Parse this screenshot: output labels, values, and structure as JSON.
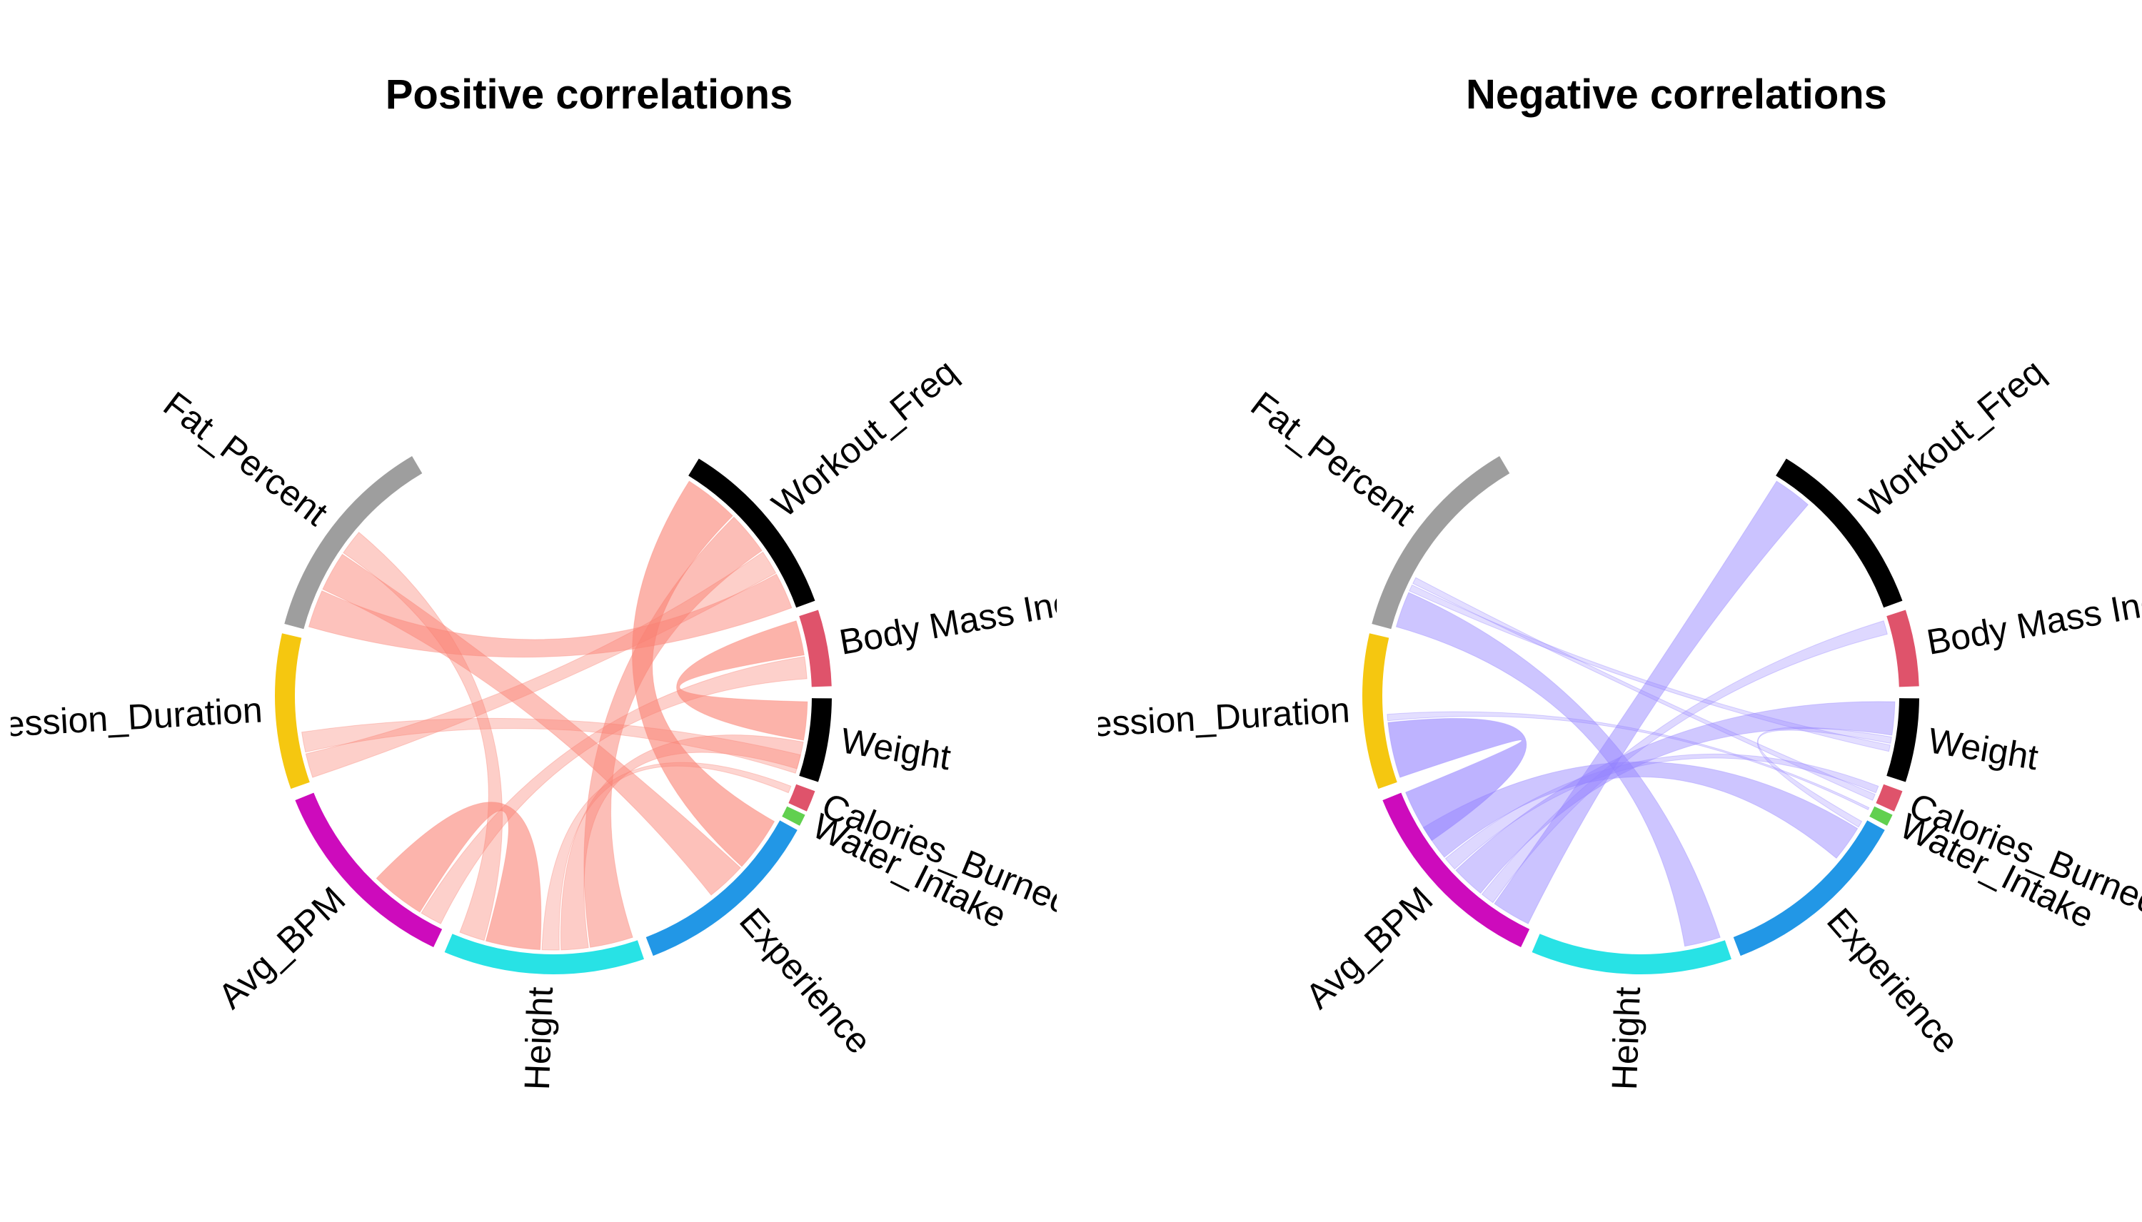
{
  "chart_data": [
    {
      "type": "chord",
      "title": "Positive correlations",
      "ribbon_color": "#fa8072",
      "segments": [
        {
          "name": "Workout_Freq",
          "color": "#000000"
        },
        {
          "name": "Body Mass Inc",
          "color": "#df536b"
        },
        {
          "name": "Weight",
          "color": "#000000"
        },
        {
          "name": "Calories_Burned",
          "color": "#df536b"
        },
        {
          "name": "Water_Intake",
          "color": "#61d04f"
        },
        {
          "name": "Experience",
          "color": "#2297e6"
        },
        {
          "name": "Height",
          "color": "#28e2e5"
        },
        {
          "name": "Avg_BPM",
          "color": "#cd0bbc"
        },
        {
          "name": "Session_Duration",
          "color": "#f5c710"
        },
        {
          "name": "Fat_Percent",
          "color": "#9e9e9e"
        }
      ],
      "links": [
        {
          "from": "Workout_Freq",
          "to": "Experience",
          "value": 0.84
        },
        {
          "from": "Workout_Freq",
          "to": "Height",
          "value": 0.64
        },
        {
          "from": "Workout_Freq",
          "to": "Session_Duration",
          "value": 0.32
        },
        {
          "from": "Workout_Freq",
          "to": "Fat_Percent",
          "value": 0.55
        },
        {
          "from": "Body Mass Inc",
          "to": "Weight",
          "value": 0.85
        },
        {
          "from": "Body Mass Inc",
          "to": "Avg_BPM",
          "value": 0.28
        },
        {
          "from": "Weight",
          "to": "Height",
          "value": 0.37
        },
        {
          "from": "Weight",
          "to": "Session_Duration",
          "value": 0.25
        },
        {
          "from": "Calories_Burned",
          "to": "Height",
          "value": 0.2
        },
        {
          "from": "Experience",
          "to": "Fat_Percent",
          "value": 0.58
        },
        {
          "from": "Height",
          "to": "Avg_BPM",
          "value": 0.83
        },
        {
          "from": "Height",
          "to": "Fat_Percent",
          "value": 0.34
        }
      ]
    },
    {
      "type": "chord",
      "title": "Negative correlations",
      "ribbon_color": "#9381ff",
      "segments": [
        {
          "name": "Workout_Freq",
          "color": "#000000"
        },
        {
          "name": "Body Mass Inc",
          "color": "#df536b"
        },
        {
          "name": "Weight",
          "color": "#000000"
        },
        {
          "name": "Calories_Burned",
          "color": "#df536b"
        },
        {
          "name": "Water_Intake",
          "color": "#61d04f"
        },
        {
          "name": "Experience",
          "color": "#2297e6"
        },
        {
          "name": "Height",
          "color": "#28e2e5"
        },
        {
          "name": "Avg_BPM",
          "color": "#cd0bbc"
        },
        {
          "name": "Session_Duration",
          "color": "#f5c710"
        },
        {
          "name": "Fat_Percent",
          "color": "#9e9e9e"
        }
      ],
      "links": [
        {
          "from": "Workout_Freq",
          "to": "Avg_BPM",
          "value": 0.6
        },
        {
          "from": "Body Mass Inc",
          "to": "Avg_BPM",
          "value": 0.15
        },
        {
          "from": "Weight",
          "to": "Avg_BPM",
          "value": 0.5
        },
        {
          "from": "Weight",
          "to": "Experience",
          "value": 0.02
        },
        {
          "from": "Calories_Burned",
          "to": "Avg_BPM",
          "value": 0.15
        },
        {
          "from": "Experience",
          "to": "Avg_BPM",
          "value": 0.55
        },
        {
          "from": "Height",
          "to": "Fat_Percent",
          "value": 0.55
        },
        {
          "from": "Avg_BPM",
          "to": "Session_Duration",
          "value": 0.9
        },
        {
          "from": "Fat_Percent",
          "to": "Weight",
          "value": 0.02
        },
        {
          "from": "Fat_Percent",
          "to": "Calories_Burned",
          "value": 0.02
        },
        {
          "from": "Water_Intake",
          "to": "Session_Duration",
          "value": 0.02
        }
      ]
    }
  ]
}
